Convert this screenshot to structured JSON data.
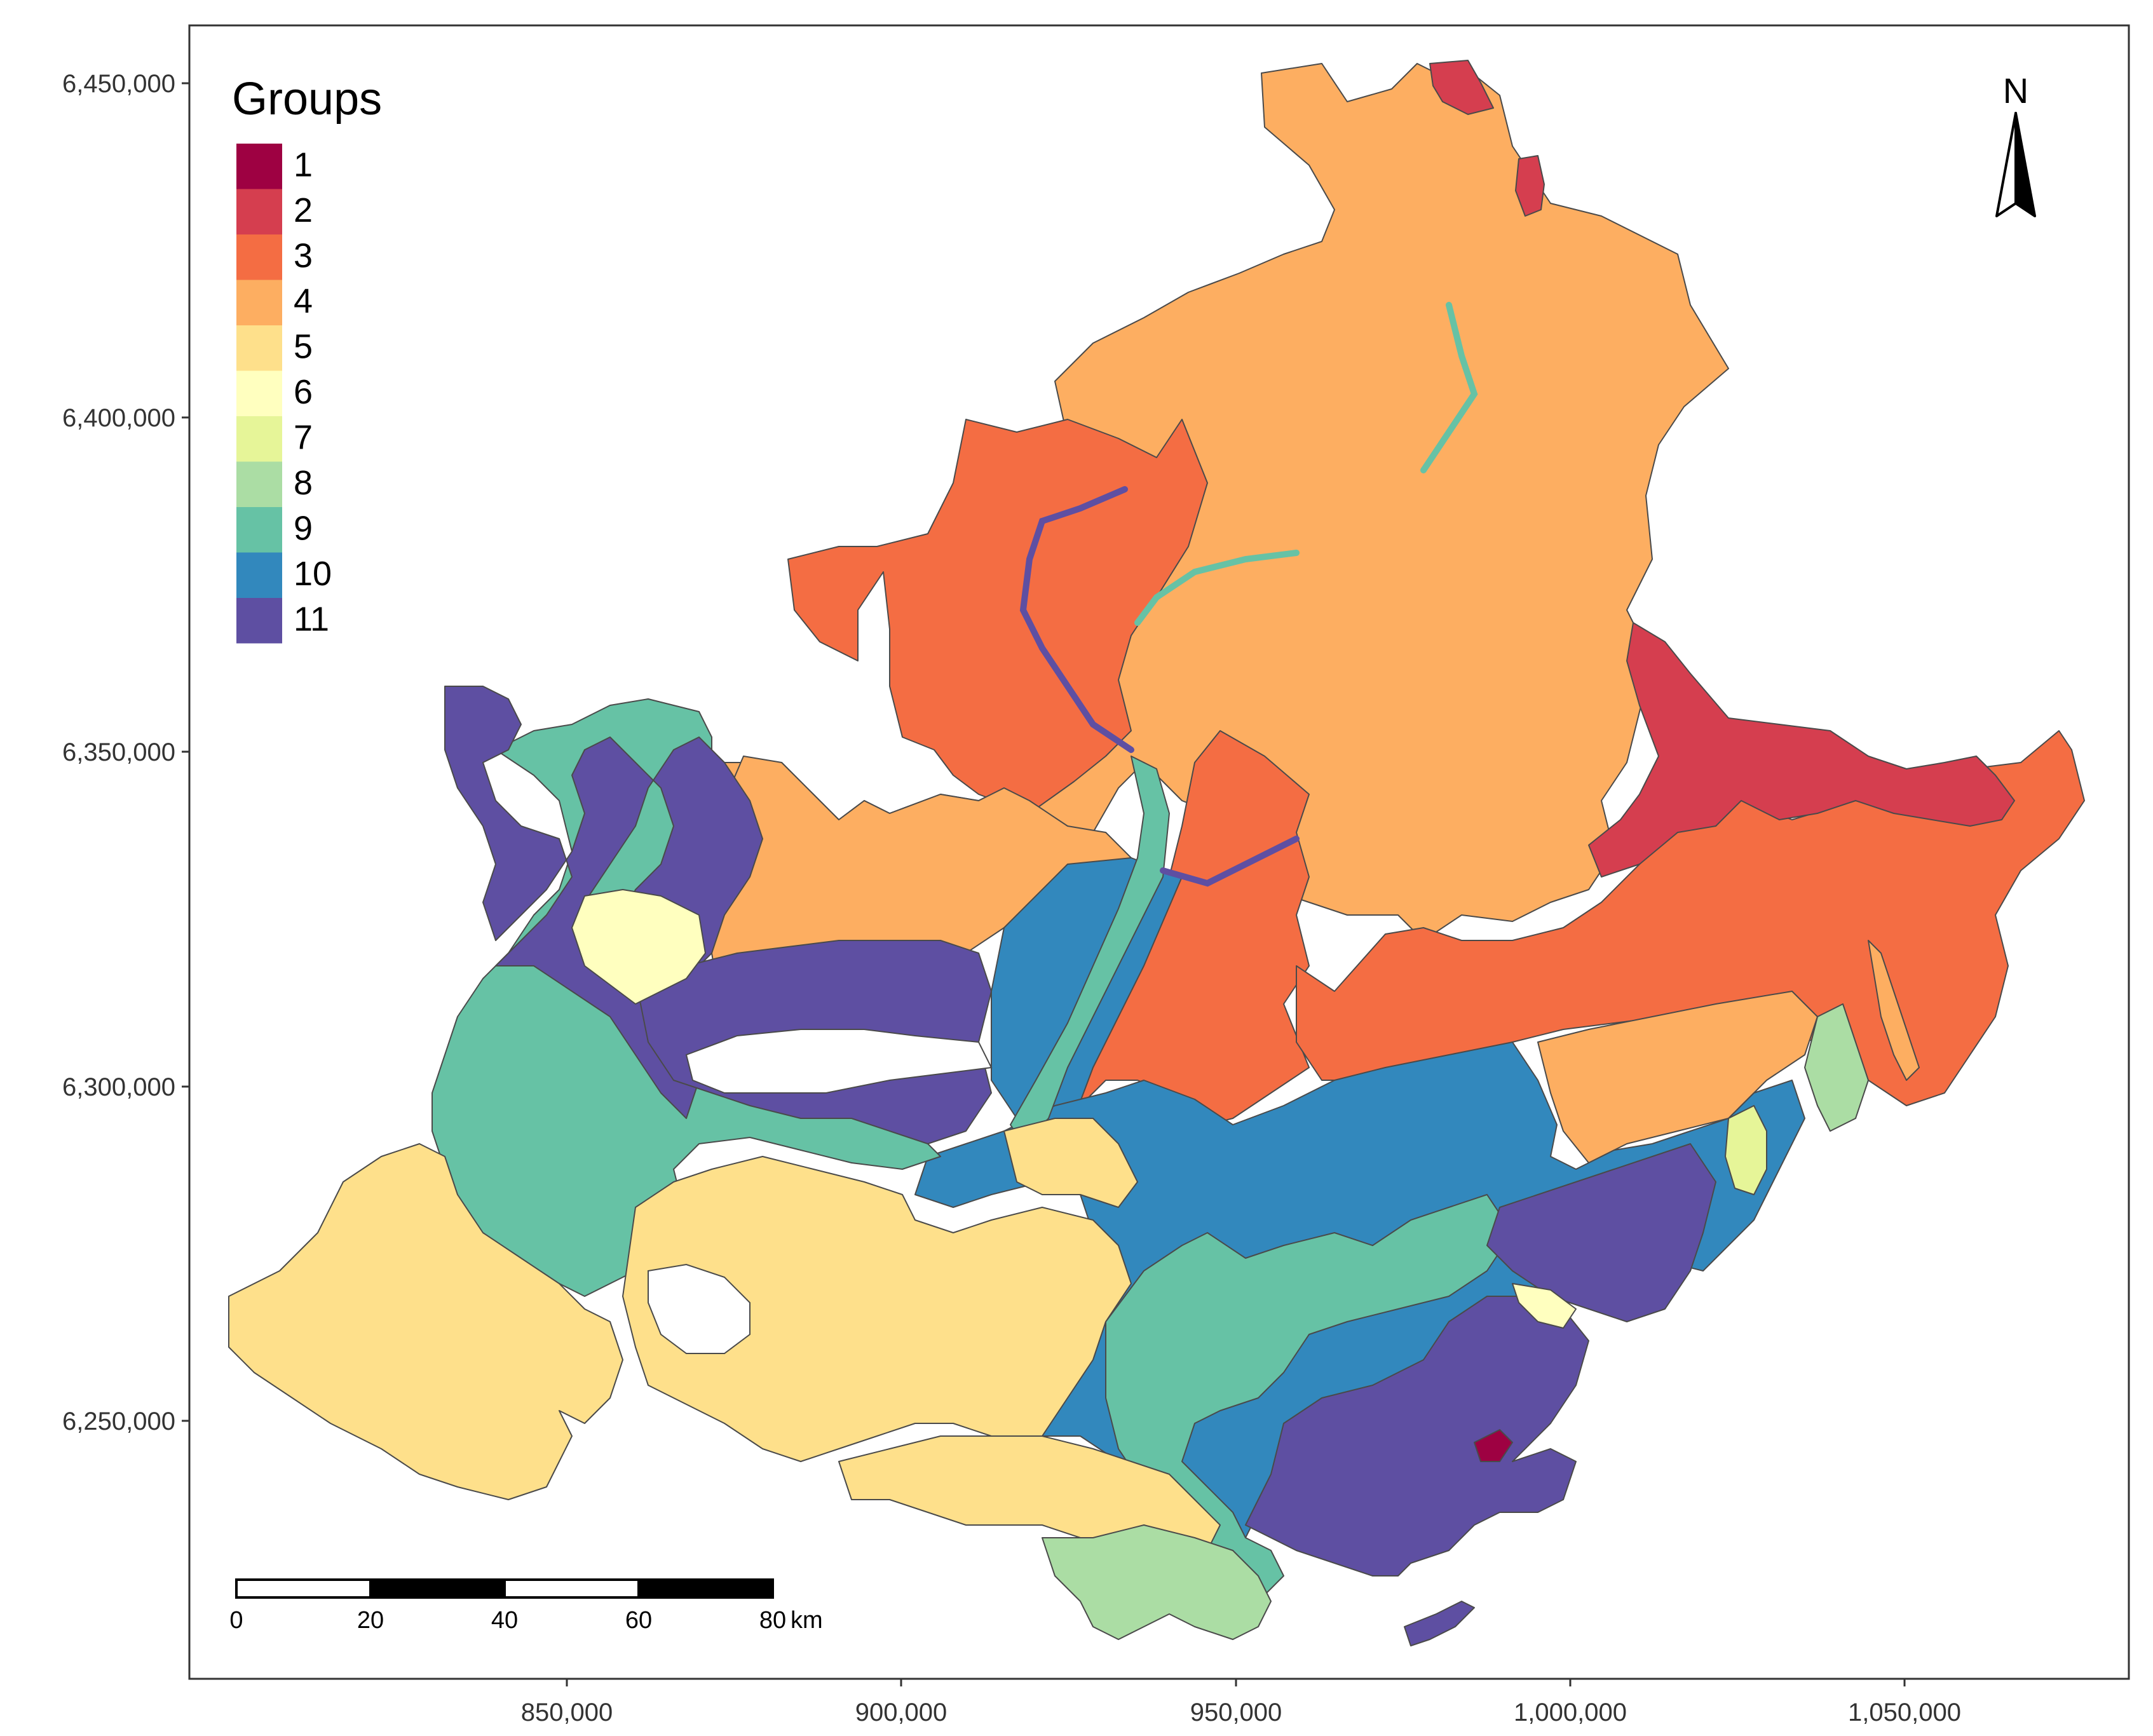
{
  "legend": {
    "title": "Groups",
    "items": [
      {
        "label": "1",
        "color": "#9E0142"
      },
      {
        "label": "2",
        "color": "#D53E4F"
      },
      {
        "label": "3",
        "color": "#F46D43"
      },
      {
        "label": "4",
        "color": "#FDAE61"
      },
      {
        "label": "5",
        "color": "#FEE08B"
      },
      {
        "label": "6",
        "color": "#FFFFBF"
      },
      {
        "label": "7",
        "color": "#E6F598"
      },
      {
        "label": "8",
        "color": "#ABDDA4"
      },
      {
        "label": "9",
        "color": "#66C2A5"
      },
      {
        "label": "10",
        "color": "#3288BD"
      },
      {
        "label": "11",
        "color": "#5E4FA2"
      }
    ]
  },
  "north_arrow": {
    "label": "N"
  },
  "scale_bar": {
    "labels": [
      "0",
      "20",
      "40",
      "60",
      "80"
    ],
    "unit": "km"
  },
  "axes": {
    "x_ticks": [
      "850,000",
      "900,000",
      "950,000",
      "1,000,000",
      "1,050,000"
    ],
    "y_ticks": [
      "6,450,000",
      "6,400,000",
      "6,350,000",
      "6,300,000",
      "6,250,000"
    ]
  }
}
